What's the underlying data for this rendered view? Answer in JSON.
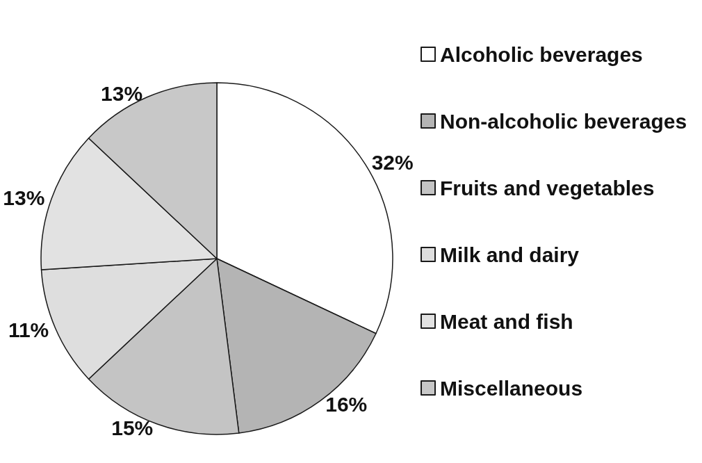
{
  "chart_data": {
    "type": "pie",
    "categories": [
      "Alcoholic beverages",
      "Non-alcoholic beverages",
      "Fruits and vegetables",
      "Milk and dairy",
      "Meat and fish",
      "Miscellaneous"
    ],
    "values": [
      32,
      16,
      15,
      11,
      13,
      13
    ],
    "colors": [
      "#ffffff",
      "#b4b4b4",
      "#c4c4c4",
      "#dedede",
      "#e2e2e2",
      "#c8c8c8"
    ],
    "value_labels": [
      "32%",
      "16%",
      "15%",
      "11%",
      "13%",
      "13%"
    ],
    "legend": "right"
  }
}
